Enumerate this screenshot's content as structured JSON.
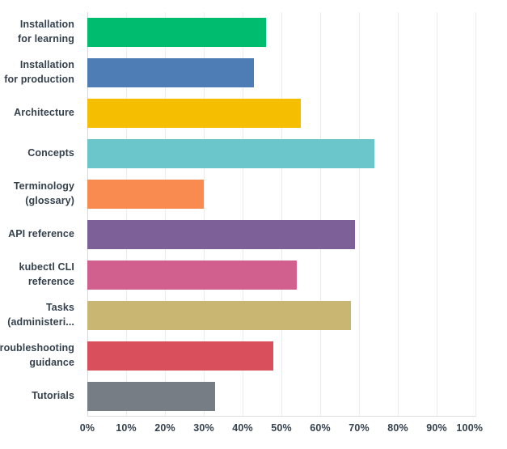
{
  "chart_data": {
    "type": "bar",
    "orientation": "horizontal",
    "title": "",
    "xlabel": "",
    "ylabel": "",
    "xlim": [
      0,
      100
    ],
    "grid": true,
    "legend": false,
    "x_tick_labels": [
      "0%",
      "10%",
      "20%",
      "30%",
      "40%",
      "50%",
      "60%",
      "70%",
      "80%",
      "90%",
      "100%"
    ],
    "categories": [
      "Installation for learning",
      "Installation for production",
      "Architecture",
      "Concepts",
      "Terminology (glossary)",
      "API reference",
      "kubectl CLI reference",
      "Tasks (administeri...",
      "Troubleshooting guidance",
      "Tutorials"
    ],
    "category_display_lines": [
      "Installation\nfor learning",
      "Installation\nfor production",
      "Architecture",
      "Concepts",
      "Terminology\n(glossary)",
      "API reference",
      "kubectl CLI\nreference",
      "Tasks\n(administeri...",
      "Troubleshooting\nguidance",
      "Tutorials"
    ],
    "values": [
      46,
      43,
      55,
      74,
      30,
      69,
      54,
      68,
      48,
      33
    ],
    "unit": "%",
    "bar_colors": [
      "#00BC6F",
      "#4E7CB5",
      "#F6BE00",
      "#6AC6CB",
      "#FA8B50",
      "#7C6097",
      "#D2608F",
      "#C9B672",
      "#D94F5B",
      "#767D85"
    ]
  },
  "colors": {
    "background": "#FFFFFF",
    "text": "#35414D",
    "gridline": "#ECECEC",
    "axis_line": "#D7DADD"
  }
}
